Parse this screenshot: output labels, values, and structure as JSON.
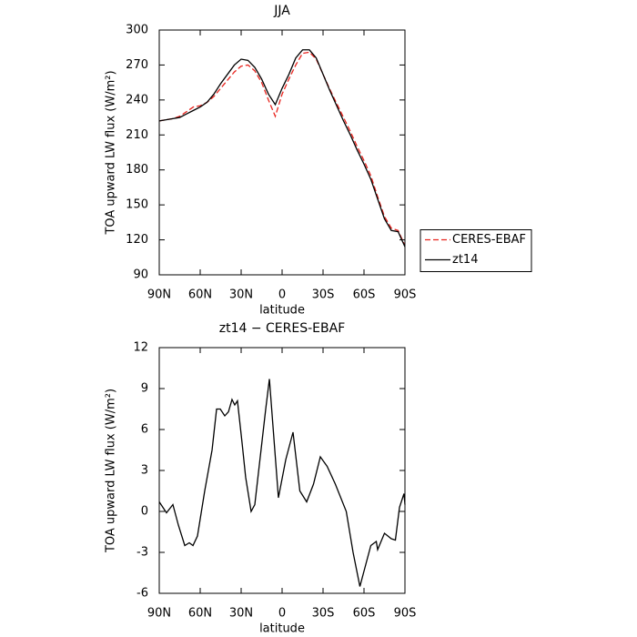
{
  "chart_data": [
    {
      "type": "line",
      "title": "JJA",
      "xlabel": "latitude",
      "ylabel": "TOA upward LW flux (W/m²)",
      "x": [
        90,
        85,
        80,
        75,
        70,
        65,
        60,
        55,
        50,
        45,
        40,
        35,
        30,
        25,
        20,
        15,
        10,
        5,
        0,
        -5,
        -10,
        -15,
        -20,
        -25,
        -30,
        -35,
        -40,
        -45,
        -50,
        -55,
        -60,
        -65,
        -70,
        -75,
        -80,
        -85,
        -90
      ],
      "series": [
        {
          "name": "CERES-EBAF",
          "color": "#e8231d",
          "style": "dashed",
          "values": [
            222,
            223,
            224,
            226,
            230,
            234,
            235,
            238,
            243,
            250,
            257,
            264,
            269,
            270,
            265,
            255,
            240,
            226,
            245,
            258,
            270,
            280,
            281,
            275,
            262,
            249,
            237,
            225,
            213,
            200,
            188,
            175,
            157,
            140,
            130,
            128,
            115
          ]
        },
        {
          "name": "zt14",
          "color": "#000000",
          "style": "solid",
          "values": [
            222,
            223,
            224,
            225,
            228,
            231,
            234,
            238,
            245,
            254,
            262,
            270,
            275,
            274,
            268,
            258,
            245,
            236,
            250,
            262,
            276,
            283,
            283,
            276,
            262,
            248,
            235,
            222,
            210,
            197,
            185,
            172,
            155,
            138,
            128,
            127,
            114
          ]
        }
      ],
      "xlim": [
        90,
        -90
      ],
      "xticks": [
        {
          "value": 90,
          "label": "90N"
        },
        {
          "value": 60,
          "label": "60N"
        },
        {
          "value": 30,
          "label": "30N"
        },
        0,
        {
          "value": -30,
          "label": "30S"
        },
        {
          "value": -60,
          "label": "60S"
        },
        {
          "value": -90,
          "label": "90S"
        }
      ],
      "ylim": [
        90,
        300
      ],
      "yticks": [
        90,
        120,
        150,
        180,
        210,
        240,
        270,
        300
      ],
      "legend": "right"
    },
    {
      "type": "line",
      "title": "zt14 − CERES-EBAF",
      "xlabel": "latitude",
      "ylabel": "TOA upward LW flux (W/m²)",
      "x": [
        90,
        84.7,
        80,
        76,
        71.3,
        68,
        65.3,
        62,
        56.7,
        51.3,
        48,
        45.3,
        42,
        39.3,
        36.7,
        34.7,
        32.7,
        29.3,
        26.7,
        22.7,
        20,
        16,
        12,
        9.3,
        2.7,
        -2.7,
        -8,
        -13,
        -18,
        -23,
        -28,
        -33,
        -39,
        -47,
        -52,
        -57,
        -61,
        -65,
        -69,
        -70,
        -75,
        -80,
        -83,
        -86,
        -89.3,
        -90
      ],
      "series": [
        {
          "name": "zt14",
          "color": "#000000",
          "style": "solid",
          "values": [
            0.7,
            -0.1,
            0.5,
            -1,
            -2.5,
            -2.3,
            -2.5,
            -1.8,
            1.5,
            4.5,
            7.5,
            7.5,
            7,
            7.3,
            8.2,
            7.8,
            8.1,
            5,
            2.5,
            0,
            0.5,
            4,
            7.5,
            9.7,
            1,
            3.8,
            5.8,
            1.5,
            0.7,
            2,
            4,
            3.3,
            2,
            0,
            -3,
            -5.5,
            -4,
            -2.5,
            -2.2,
            -2.8,
            -1.6,
            -2,
            -2.1,
            0.3,
            1.3,
            0.5
          ]
        }
      ],
      "xlim": [
        90,
        -90
      ],
      "xticks": [
        {
          "value": 90,
          "label": "90N"
        },
        {
          "value": 60,
          "label": "60N"
        },
        {
          "value": 30,
          "label": "30N"
        },
        0,
        {
          "value": -30,
          "label": "30S"
        },
        {
          "value": -60,
          "label": "60S"
        },
        {
          "value": -90,
          "label": "90S"
        }
      ],
      "ylim": [
        -6,
        12
      ],
      "yticks": [
        -6,
        -3,
        0,
        3,
        6,
        9,
        12
      ]
    }
  ]
}
